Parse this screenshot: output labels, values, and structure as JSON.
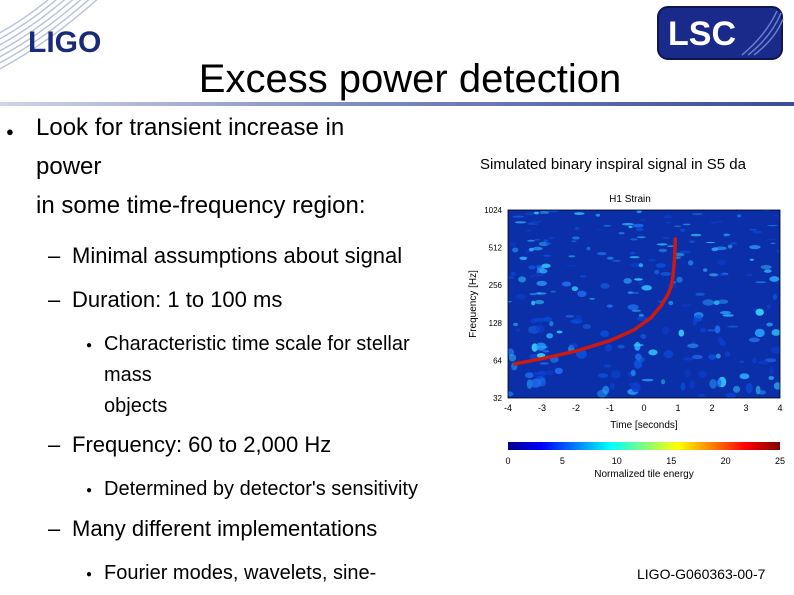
{
  "header": {
    "left_logo": "LIGO",
    "right_logo": "LSC",
    "title": "Excess power detection"
  },
  "body": {
    "main_bullet": [
      "Look for transient increase in",
      "power",
      "in some time-frequency region:"
    ],
    "minimal": "Minimal assumptions about signal",
    "duration": "Duration: 1 to 100 ms",
    "duration_sub": [
      "Characteristic time scale for stellar",
      "mass",
      "objects"
    ],
    "frequency": "Frequency: 60 to 2,000 Hz",
    "frequency_sub": "Determined by detector's sensitivity",
    "implementations": "Many different implementations",
    "implementations_sub": "Fourier modes, wavelets, sine-"
  },
  "figure": {
    "caption": "Simulated binary inspiral signal in S5 da",
    "chart_data": {
      "type": "heatmap",
      "title": "H1 Strain",
      "xlabel": "Time [seconds]",
      "ylabel": "Frequency [Hz]",
      "x_ticks": [
        "-4",
        "-3",
        "-2",
        "-1",
        "0",
        "1",
        "2",
        "3",
        "4"
      ],
      "y_ticks": [
        "1024",
        "512",
        "256",
        "128",
        "64",
        "32"
      ],
      "xlim": [
        -4,
        4
      ],
      "ylim": [
        32,
        1024
      ],
      "y_scale": "log",
      "colorbar_label": "Normalized tile energy",
      "colorbar_ticks": [
        "0",
        "5",
        "10",
        "15",
        "20",
        "25"
      ],
      "colorbar_range": [
        0,
        25
      ],
      "colors": {
        "background": "#0a2fa8",
        "signal": "#cc1a10"
      },
      "chirp_track": [
        {
          "t": -3.8,
          "f": 60
        },
        {
          "t": -3.0,
          "f": 66
        },
        {
          "t": -2.0,
          "f": 76
        },
        {
          "t": -1.0,
          "f": 92
        },
        {
          "t": -0.3,
          "f": 112
        },
        {
          "t": 0.2,
          "f": 140
        },
        {
          "t": 0.5,
          "f": 175
        },
        {
          "t": 0.7,
          "f": 215
        },
        {
          "t": 0.8,
          "f": 250
        },
        {
          "t": 0.85,
          "f": 300
        },
        {
          "t": 0.9,
          "f": 420
        },
        {
          "t": 0.92,
          "f": 600
        }
      ]
    }
  },
  "footer": {
    "doc_id": "LIGO-G060363-00-7"
  }
}
